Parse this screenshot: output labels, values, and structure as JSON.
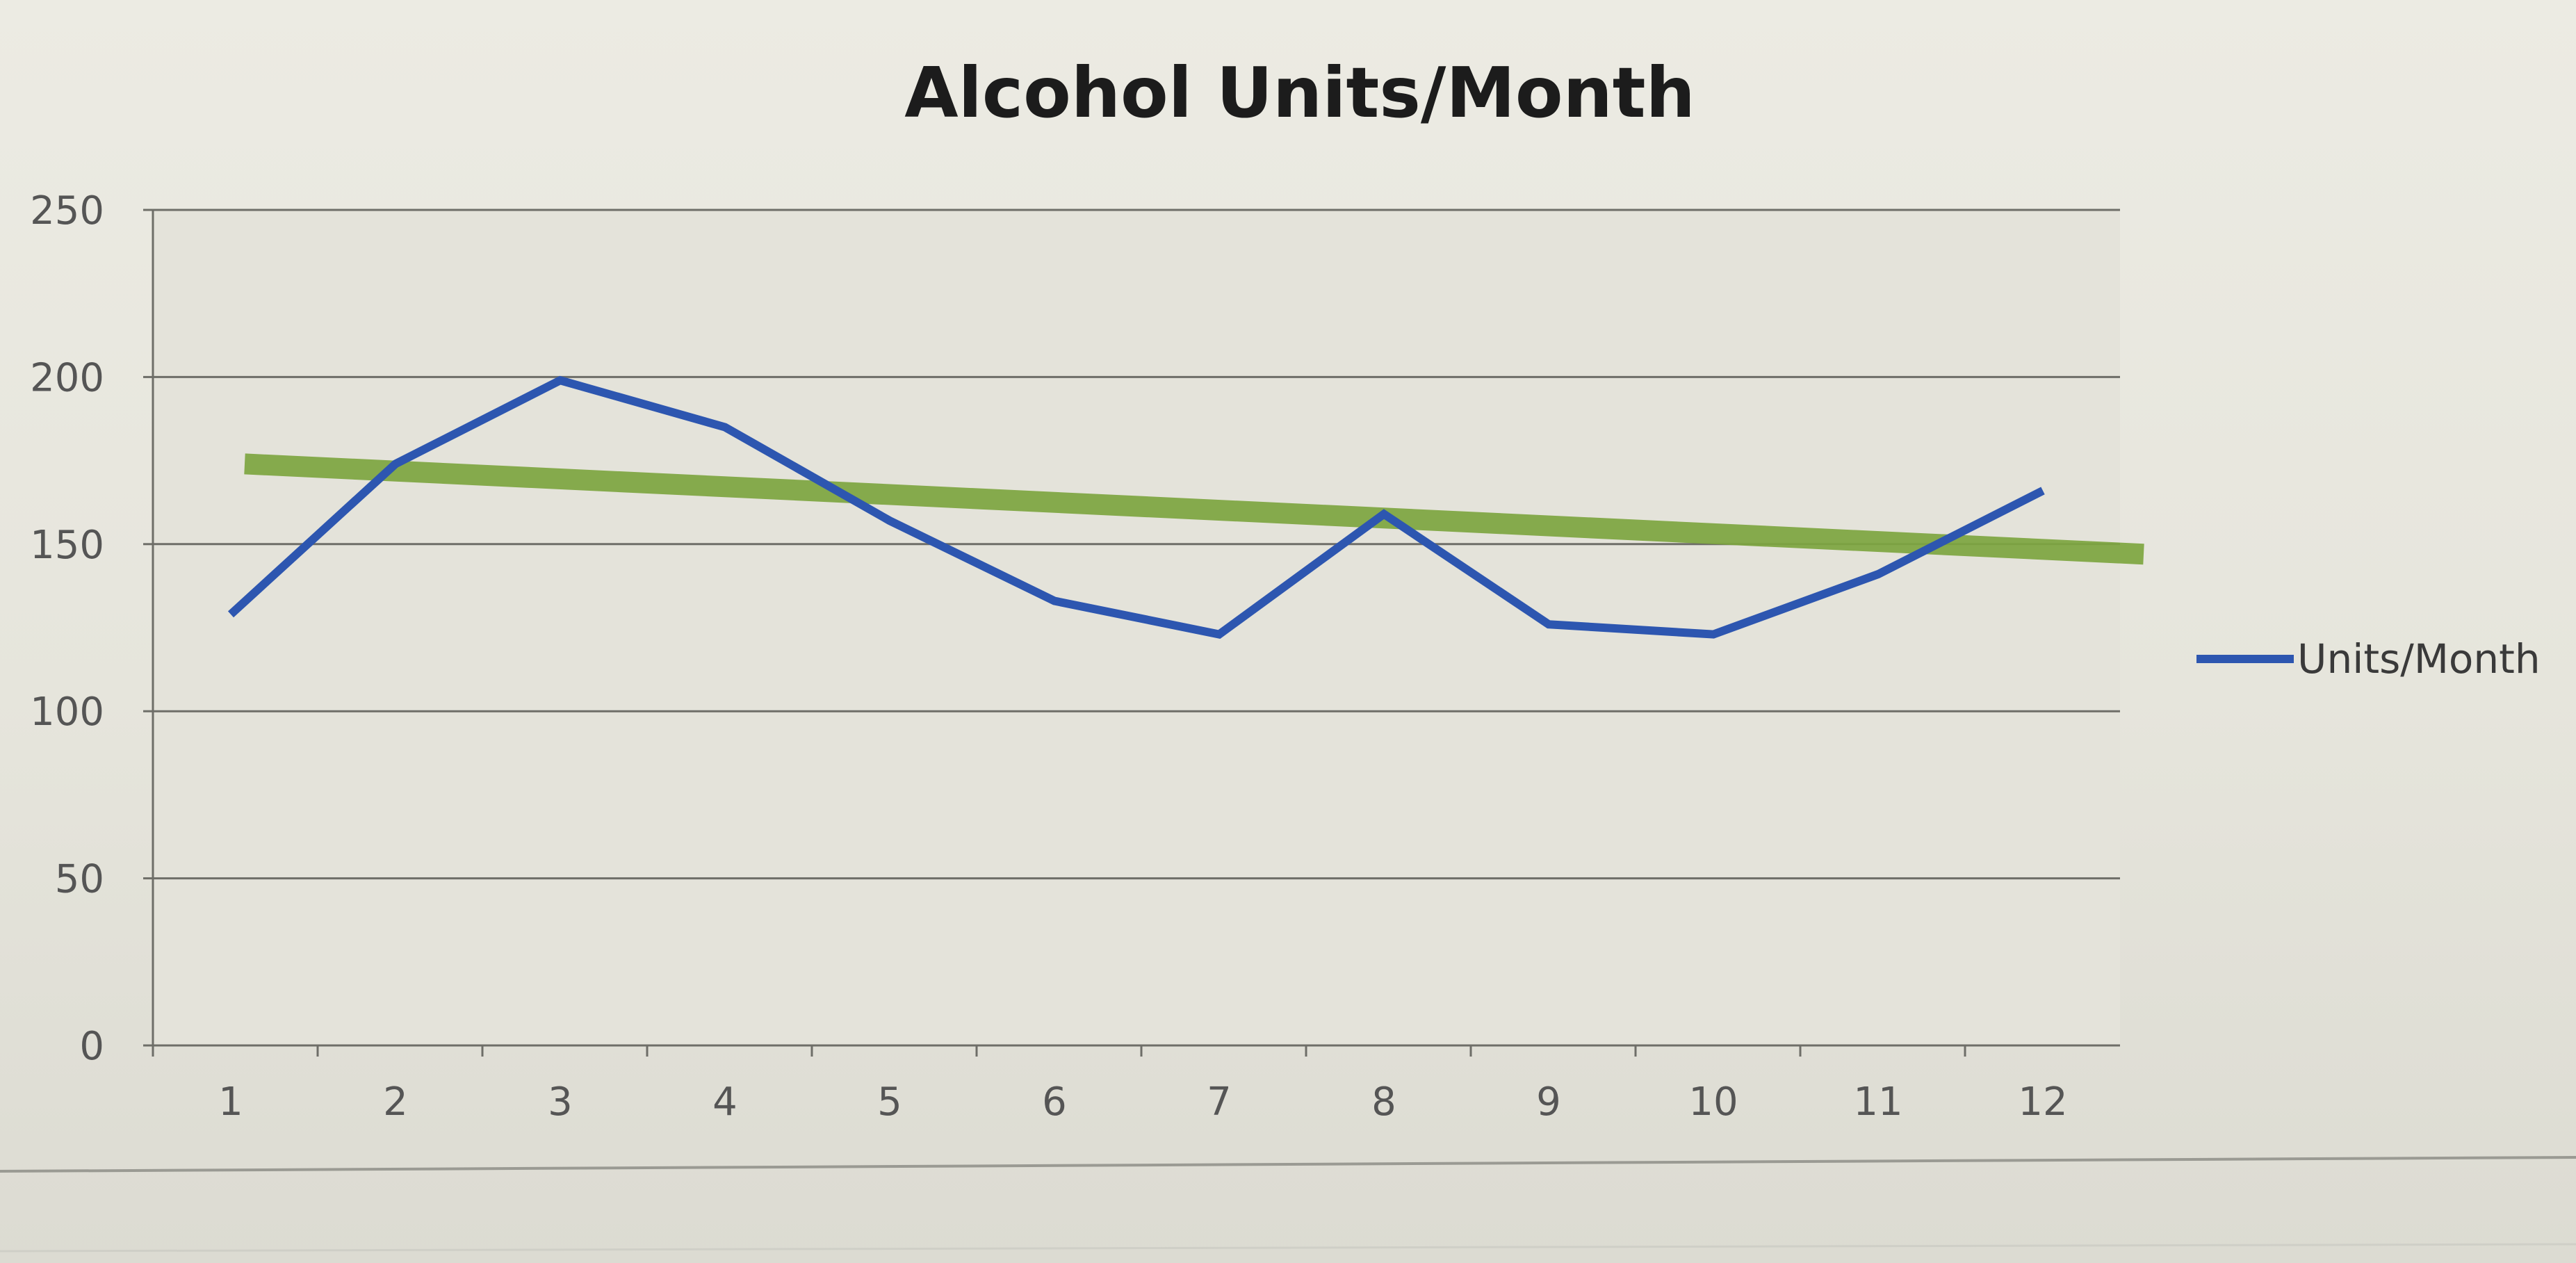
{
  "chart_data": {
    "type": "line",
    "title": "Alcohol Units/Month",
    "xlabel": "",
    "ylabel": "",
    "categories": [
      "1",
      "2",
      "3",
      "4",
      "5",
      "6",
      "7",
      "8",
      "9",
      "10",
      "11",
      "12"
    ],
    "x": [
      1,
      2,
      3,
      4,
      5,
      6,
      7,
      8,
      9,
      10,
      11,
      12
    ],
    "ylim": [
      0,
      250
    ],
    "yticks": [
      0,
      50,
      100,
      150,
      200,
      250
    ],
    "ytick_labels": [
      "0",
      "50",
      "100",
      "150",
      "200",
      "250"
    ],
    "grid": true,
    "legend_position": "right",
    "series": [
      {
        "name": "Units/Month",
        "color": "#2d56b0",
        "values": [
          129,
          174,
          199,
          185,
          157,
          133,
          123,
          159,
          126,
          123,
          141,
          166
        ]
      }
    ],
    "trendline": {
      "type": "linear",
      "color": "#7ea640",
      "start": {
        "x": 1,
        "y": 174
      },
      "end": {
        "x": 12,
        "y": 147
      }
    }
  }
}
